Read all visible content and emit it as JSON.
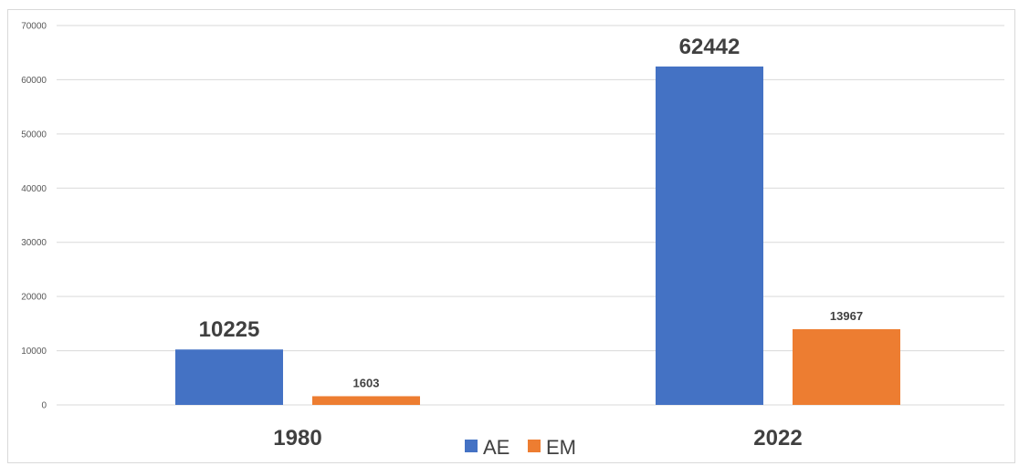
{
  "chart_data": {
    "type": "bar",
    "title": "",
    "xlabel": "",
    "ylabel": "",
    "categories": [
      "1980",
      "2022"
    ],
    "series": [
      {
        "name": "AE",
        "values": [
          10225,
          62442
        ],
        "color": "#4472C4"
      },
      {
        "name": "EM",
        "values": [
          1603,
          13967
        ],
        "color": "#ED7D31"
      }
    ],
    "ylim": [
      0,
      70000
    ],
    "yticks": [
      "0",
      "10000",
      "20000",
      "30000",
      "40000",
      "50000",
      "60000",
      "70000"
    ],
    "grid": true,
    "legend_position": "bottom-center"
  }
}
